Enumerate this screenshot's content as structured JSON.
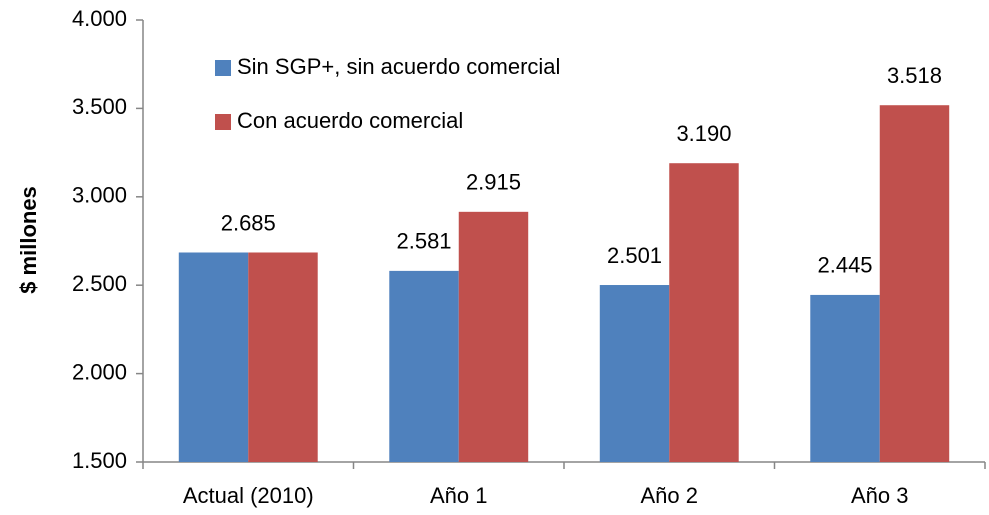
{
  "chart_data": {
    "type": "bar",
    "y_label": "$ millones",
    "categories": [
      "Actual (2010)",
      "Año 1",
      "Año 2",
      "Año 3"
    ],
    "series": [
      {
        "name": "Sin SGP+, sin acuerdo comercial",
        "color": "#4f81bd",
        "values": [
          2685,
          2581,
          2501,
          2445
        ],
        "value_labels": [
          "2.685",
          "2.581",
          "2.501",
          "2.445"
        ]
      },
      {
        "name": "Con acuerdo comercial",
        "color": "#c0504d",
        "values": [
          2685,
          2915,
          3190,
          3518
        ],
        "value_labels": [
          "",
          "2.915",
          "3.190",
          "3.518"
        ]
      }
    ],
    "ylim": [
      1500,
      4000
    ],
    "yticks": [
      {
        "value": 1500,
        "label": "1.500"
      },
      {
        "value": 2000,
        "label": "2.000"
      },
      {
        "value": 2500,
        "label": "2.500"
      },
      {
        "value": 3000,
        "label": "3.000"
      },
      {
        "value": 3500,
        "label": "3.500"
      },
      {
        "value": 4000,
        "label": "4.000"
      }
    ],
    "legend": "top-left"
  }
}
